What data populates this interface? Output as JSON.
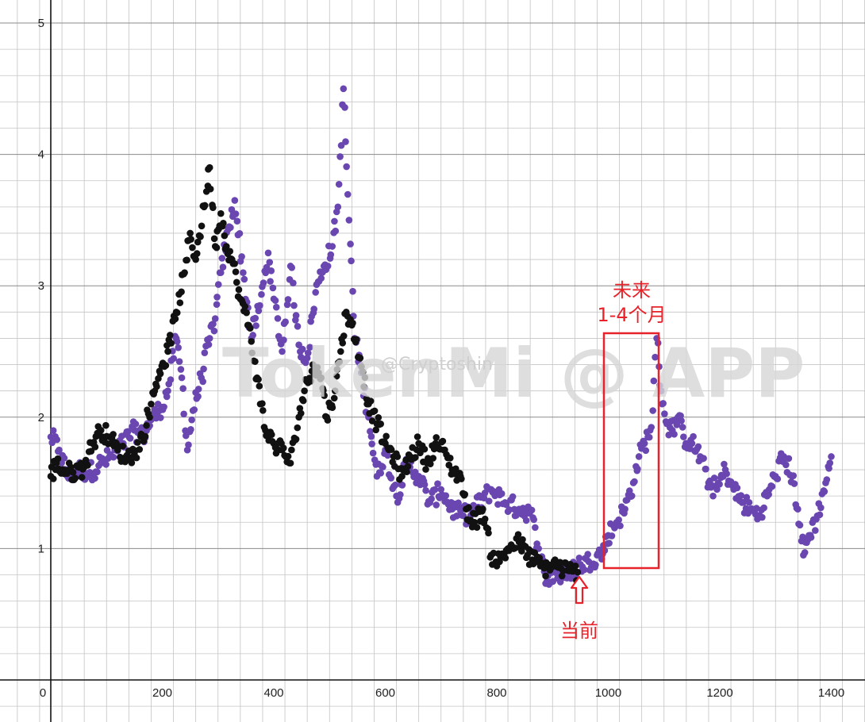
{
  "watermark": {
    "main": "TokenMi @ APP",
    "sub": "@Cryptoshin"
  },
  "annotations": {
    "future_line1": "未来",
    "future_line2": "1-4个月",
    "current": "当前"
  },
  "colors": {
    "historical": "#111111",
    "projection": "#6a46b0",
    "annotation": "#e8222a",
    "grid_major": "#8a8a8a",
    "grid_minor": "#c4c4c4"
  },
  "chart_data": {
    "type": "scatter",
    "title": "",
    "xlabel": "",
    "ylabel": "",
    "xlim": [
      -90,
      1450
    ],
    "ylim": [
      -0.3,
      5.2
    ],
    "xticks": [
      0,
      200,
      400,
      600,
      800,
      1000,
      1200,
      1400
    ],
    "yticks": [
      1,
      2,
      3,
      4,
      5
    ],
    "grid": true,
    "legend": "none",
    "series": [
      {
        "color": "#6a46b0",
        "points": [
          [
            0,
            1.85
          ],
          [
            15,
            1.75
          ],
          [
            30,
            1.55
          ],
          [
            50,
            1.6
          ],
          [
            70,
            1.58
          ],
          [
            90,
            1.65
          ],
          [
            110,
            1.7
          ],
          [
            130,
            1.8
          ],
          [
            150,
            1.9
          ],
          [
            165,
            1.85
          ],
          [
            180,
            1.98
          ],
          [
            195,
            2.05
          ],
          [
            210,
            2.2
          ],
          [
            225,
            2.6
          ],
          [
            235,
            2.3
          ],
          [
            245,
            1.75
          ],
          [
            255,
            2.05
          ],
          [
            270,
            2.3
          ],
          [
            285,
            2.6
          ],
          [
            295,
            2.75
          ],
          [
            305,
            3.1
          ],
          [
            320,
            3.45
          ],
          [
            330,
            3.65
          ],
          [
            345,
            3.1
          ],
          [
            360,
            2.6
          ],
          [
            375,
            2.85
          ],
          [
            390,
            3.25
          ],
          [
            400,
            2.9
          ],
          [
            415,
            2.5
          ],
          [
            430,
            3.15
          ],
          [
            445,
            2.55
          ],
          [
            460,
            2.45
          ],
          [
            475,
            2.95
          ],
          [
            490,
            3.15
          ],
          [
            505,
            3.3
          ],
          [
            515,
            3.6
          ],
          [
            525,
            4.5
          ],
          [
            535,
            3.5
          ],
          [
            545,
            2.6
          ],
          [
            555,
            2.4
          ],
          [
            570,
            2.0
          ],
          [
            585,
            1.55
          ],
          [
            600,
            1.75
          ],
          [
            620,
            1.4
          ],
          [
            640,
            1.65
          ],
          [
            660,
            1.55
          ],
          [
            680,
            1.35
          ],
          [
            700,
            1.45
          ],
          [
            720,
            1.3
          ],
          [
            740,
            1.25
          ],
          [
            760,
            1.3
          ],
          [
            790,
            1.45
          ],
          [
            815,
            1.35
          ],
          [
            840,
            1.3
          ],
          [
            860,
            1.28
          ],
          [
            875,
            1.0
          ],
          [
            890,
            0.75
          ],
          [
            905,
            0.82
          ],
          [
            920,
            0.78
          ],
          [
            935,
            0.85
          ],
          [
            950,
            0.88
          ],
          [
            965,
            0.9
          ],
          [
            980,
            0.95
          ],
          [
            990,
            0.96
          ],
          [
            1000,
            1.1
          ],
          [
            1015,
            1.2
          ],
          [
            1030,
            1.3
          ],
          [
            1045,
            1.5
          ],
          [
            1055,
            1.7
          ],
          [
            1065,
            1.8
          ],
          [
            1075,
            1.9
          ],
          [
            1080,
            2.05
          ],
          [
            1087,
            2.6
          ],
          [
            1095,
            2.2
          ],
          [
            1105,
            1.95
          ],
          [
            1115,
            1.9
          ],
          [
            1125,
            2.0
          ],
          [
            1135,
            1.85
          ],
          [
            1150,
            1.8
          ],
          [
            1165,
            1.7
          ],
          [
            1180,
            1.5
          ],
          [
            1195,
            1.45
          ],
          [
            1210,
            1.6
          ],
          [
            1225,
            1.45
          ],
          [
            1240,
            1.35
          ],
          [
            1255,
            1.3
          ],
          [
            1270,
            1.25
          ],
          [
            1285,
            1.4
          ],
          [
            1300,
            1.55
          ],
          [
            1315,
            1.7
          ],
          [
            1330,
            1.55
          ],
          [
            1340,
            1.3
          ],
          [
            1350,
            0.95
          ],
          [
            1360,
            1.1
          ],
          [
            1375,
            1.25
          ],
          [
            1390,
            1.5
          ],
          [
            1400,
            1.7
          ]
        ]
      },
      {
        "color": "#111111",
        "points": [
          [
            0,
            1.55
          ],
          [
            10,
            1.65
          ],
          [
            20,
            1.6
          ],
          [
            40,
            1.58
          ],
          [
            60,
            1.62
          ],
          [
            75,
            1.8
          ],
          [
            90,
            1.9
          ],
          [
            105,
            1.85
          ],
          [
            120,
            1.75
          ],
          [
            135,
            1.7
          ],
          [
            150,
            1.72
          ],
          [
            165,
            1.85
          ],
          [
            180,
            2.1
          ],
          [
            195,
            2.35
          ],
          [
            210,
            2.5
          ],
          [
            225,
            2.8
          ],
          [
            240,
            3.1
          ],
          [
            250,
            3.4
          ],
          [
            260,
            3.2
          ],
          [
            275,
            3.6
          ],
          [
            285,
            3.9
          ],
          [
            295,
            3.3
          ],
          [
            305,
            3.55
          ],
          [
            315,
            3.3
          ],
          [
            325,
            3.2
          ],
          [
            340,
            2.9
          ],
          [
            355,
            2.7
          ],
          [
            370,
            2.3
          ],
          [
            385,
            1.9
          ],
          [
            400,
            1.8
          ],
          [
            415,
            1.75
          ],
          [
            430,
            1.65
          ],
          [
            445,
            2.0
          ],
          [
            455,
            2.2
          ],
          [
            470,
            2.4
          ],
          [
            485,
            2.3
          ],
          [
            495,
            2.0
          ],
          [
            510,
            2.2
          ],
          [
            520,
            2.5
          ],
          [
            530,
            2.8
          ],
          [
            540,
            2.7
          ],
          [
            555,
            2.45
          ],
          [
            570,
            2.1
          ],
          [
            585,
            1.95
          ],
          [
            600,
            1.8
          ],
          [
            615,
            1.7
          ],
          [
            630,
            1.55
          ],
          [
            645,
            1.7
          ],
          [
            660,
            1.8
          ],
          [
            675,
            1.65
          ],
          [
            690,
            1.8
          ],
          [
            705,
            1.75
          ],
          [
            720,
            1.6
          ],
          [
            735,
            1.55
          ],
          [
            745,
            1.3
          ],
          [
            760,
            1.2
          ],
          [
            775,
            1.3
          ],
          [
            790,
            0.95
          ],
          [
            805,
            0.9
          ],
          [
            820,
            1.0
          ],
          [
            840,
            1.05
          ],
          [
            855,
            0.95
          ],
          [
            870,
            0.9
          ],
          [
            885,
            0.85
          ],
          [
            900,
            0.88
          ],
          [
            915,
            0.85
          ],
          [
            930,
            0.83
          ],
          [
            945,
            0.82
          ]
        ]
      }
    ]
  }
}
